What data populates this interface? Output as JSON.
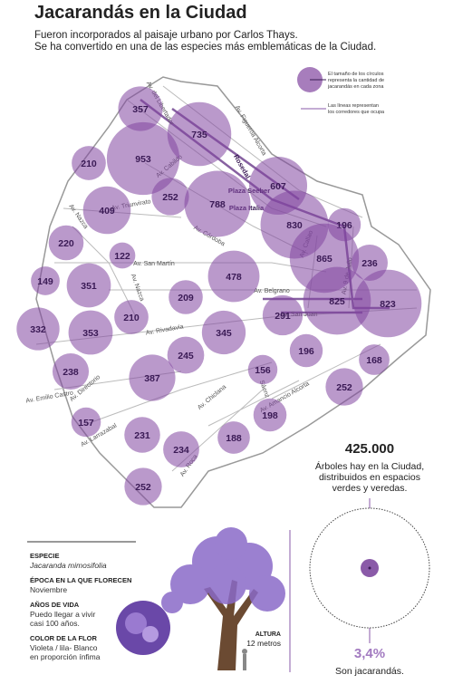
{
  "header": {
    "title": "Jacarandás en la Ciudad",
    "subtitle": [
      "Fueron incorporados al paisaje urbano por Carlos Thays.",
      "Se ha convertido en una de las especies más emblemáticas de la Ciudad."
    ]
  },
  "legend": {
    "circle_text": [
      "El tamaño de los círculos",
      "representa la cantidad de",
      "jacarandás en cada zona"
    ],
    "line_text": [
      "Las líneas representan",
      "los corredores que ocupa"
    ]
  },
  "map": {
    "bubbles": [
      357,
      735,
      953,
      210,
      252,
      788,
      607,
      409,
      830,
      196,
      220,
      122,
      865,
      236,
      149,
      351,
      478,
      209,
      825,
      823,
      210,
      291,
      332,
      353,
      345,
      196,
      245,
      168,
      238,
      387,
      156,
      252,
      198,
      157,
      231,
      188,
      234,
      252
    ],
    "streets": [
      "Av. del Libertador",
      "Av. Figueroa Alcorta",
      "Av. Cabildo",
      "Rosedal",
      "Plaza Seeber",
      "Plaza Italia",
      "Av. Triunvirato",
      "Av. Nazca",
      "Av. Córdoba",
      "Av. San Martín",
      "Av. Callao",
      "Av. 9 de Julio",
      "Av. Belgrano",
      "Av. San Juan",
      "Av. Nazca",
      "Av. Rivadavia",
      "Av. Emilio Castro",
      "Av. Directorio",
      "Av. Larrazabal",
      "Av. Chiclana",
      "Sáenz",
      "Av. Amancio Alcorta",
      "Av. Roca"
    ]
  },
  "stats": {
    "total": "425.000",
    "total_text": [
      "Árboles hay en la Ciudad,",
      "distribuidos en espacios",
      "verdes y veredas."
    ],
    "percent": "3,4%",
    "percent_text": "Son jacarandás."
  },
  "info": [
    {
      "label": "ESPECIE",
      "value": [
        "Jacaranda mimosifolia"
      ]
    },
    {
      "label": "ÉPOCA EN LA QUE FLORECEN",
      "value": [
        "Noviembre"
      ]
    },
    {
      "label": "AÑOS DE VIDA",
      "value": [
        "Puedo llegar a vivir",
        "casi 100 años."
      ]
    },
    {
      "label": "COLOR DE LA FLOR",
      "value": [
        "Violeta / lila- Blanco",
        "en proporción ínfima"
      ]
    }
  ],
  "tree": {
    "height_label": "ALTURA",
    "height_value": "12 metros"
  }
}
